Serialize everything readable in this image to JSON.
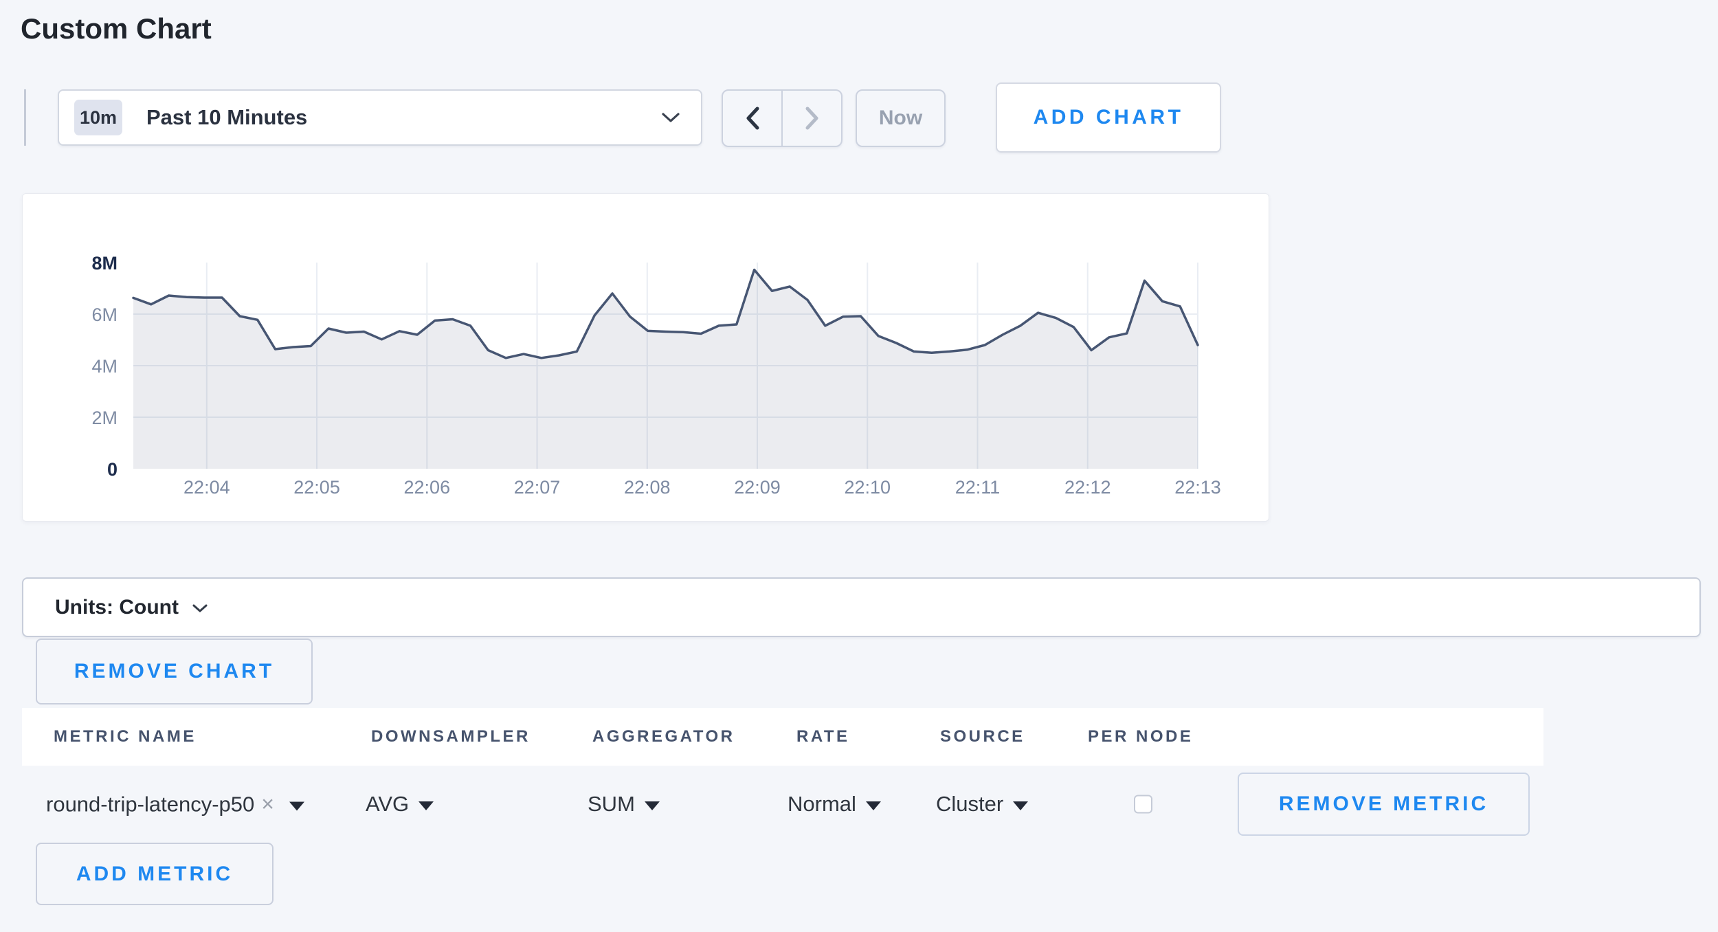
{
  "page": {
    "title": "Custom Chart",
    "colors": {
      "background": "#f4f6fa",
      "accent_blue": "#1e88f0",
      "text_dark": "#2b3240",
      "muted_text": "#98a1b0",
      "control_border": "#d2d7e1"
    }
  },
  "toolbar": {
    "time_range": {
      "badge": "10m",
      "label": "Past 10 Minutes"
    },
    "now_label": "Now",
    "add_chart_label": "ADD CHART"
  },
  "chart_data": {
    "type": "area",
    "title": "",
    "xlabel": "",
    "ylabel": "",
    "x_domain": [
      "22:03:20",
      "22:13:00"
    ],
    "x_tick_labels": [
      "22:04",
      "22:05",
      "22:06",
      "22:07",
      "22:08",
      "22:09",
      "22:10",
      "22:11",
      "22:12",
      "22:13"
    ],
    "ylim": [
      0,
      8
    ],
    "y_unit": "millions (Count)",
    "grid": true,
    "legend": null,
    "y_ticks": [
      {
        "label": "0",
        "value": 0,
        "bold": true
      },
      {
        "label": "2M",
        "value": 2,
        "bold": false
      },
      {
        "label": "4M",
        "value": 4,
        "bold": false
      },
      {
        "label": "6M",
        "value": 6,
        "bold": false
      },
      {
        "label": "8M",
        "value": 8,
        "bold": true
      }
    ],
    "values_millions": [
      6.63,
      6.38,
      6.72,
      6.66,
      6.64,
      6.64,
      5.92,
      5.78,
      4.64,
      4.72,
      4.76,
      5.44,
      5.28,
      5.32,
      5.02,
      5.34,
      5.2,
      5.75,
      5.8,
      5.55,
      4.6,
      4.3,
      4.45,
      4.3,
      4.4,
      4.55,
      5.95,
      6.8,
      5.9,
      5.35,
      5.32,
      5.3,
      5.24,
      5.55,
      5.6,
      7.72,
      6.9,
      7.07,
      6.55,
      5.55,
      5.9,
      5.92,
      5.15,
      4.88,
      4.55,
      4.5,
      4.55,
      4.62,
      4.8,
      5.2,
      5.55,
      6.05,
      5.85,
      5.5,
      4.6,
      5.1,
      5.25,
      7.3,
      6.5,
      6.3,
      4.8
    ],
    "colors": {
      "line": "#475673",
      "fill": "rgba(71,86,115,0.11)",
      "grid": "#e9edf3",
      "axis_label": "#7e8ba3",
      "axis_label_emphasis": "#1d2c4c"
    }
  },
  "units_bar": {
    "label": "Units: Count"
  },
  "chart_actions": {
    "remove_chart_label": "REMOVE CHART"
  },
  "metrics_table": {
    "columns": [
      "METRIC NAME",
      "DOWNSAMPLER",
      "AGGREGATOR",
      "RATE",
      "SOURCE",
      "PER NODE"
    ],
    "rows": [
      {
        "metric_name": "round-trip-latency-p50",
        "downsampler": "AVG",
        "aggregator": "SUM",
        "rate": "Normal",
        "source": "Cluster",
        "per_node_checked": false,
        "remove_label": "REMOVE METRIC"
      }
    ],
    "add_metric_label": "ADD METRIC"
  },
  "icons": {
    "close": "×"
  }
}
